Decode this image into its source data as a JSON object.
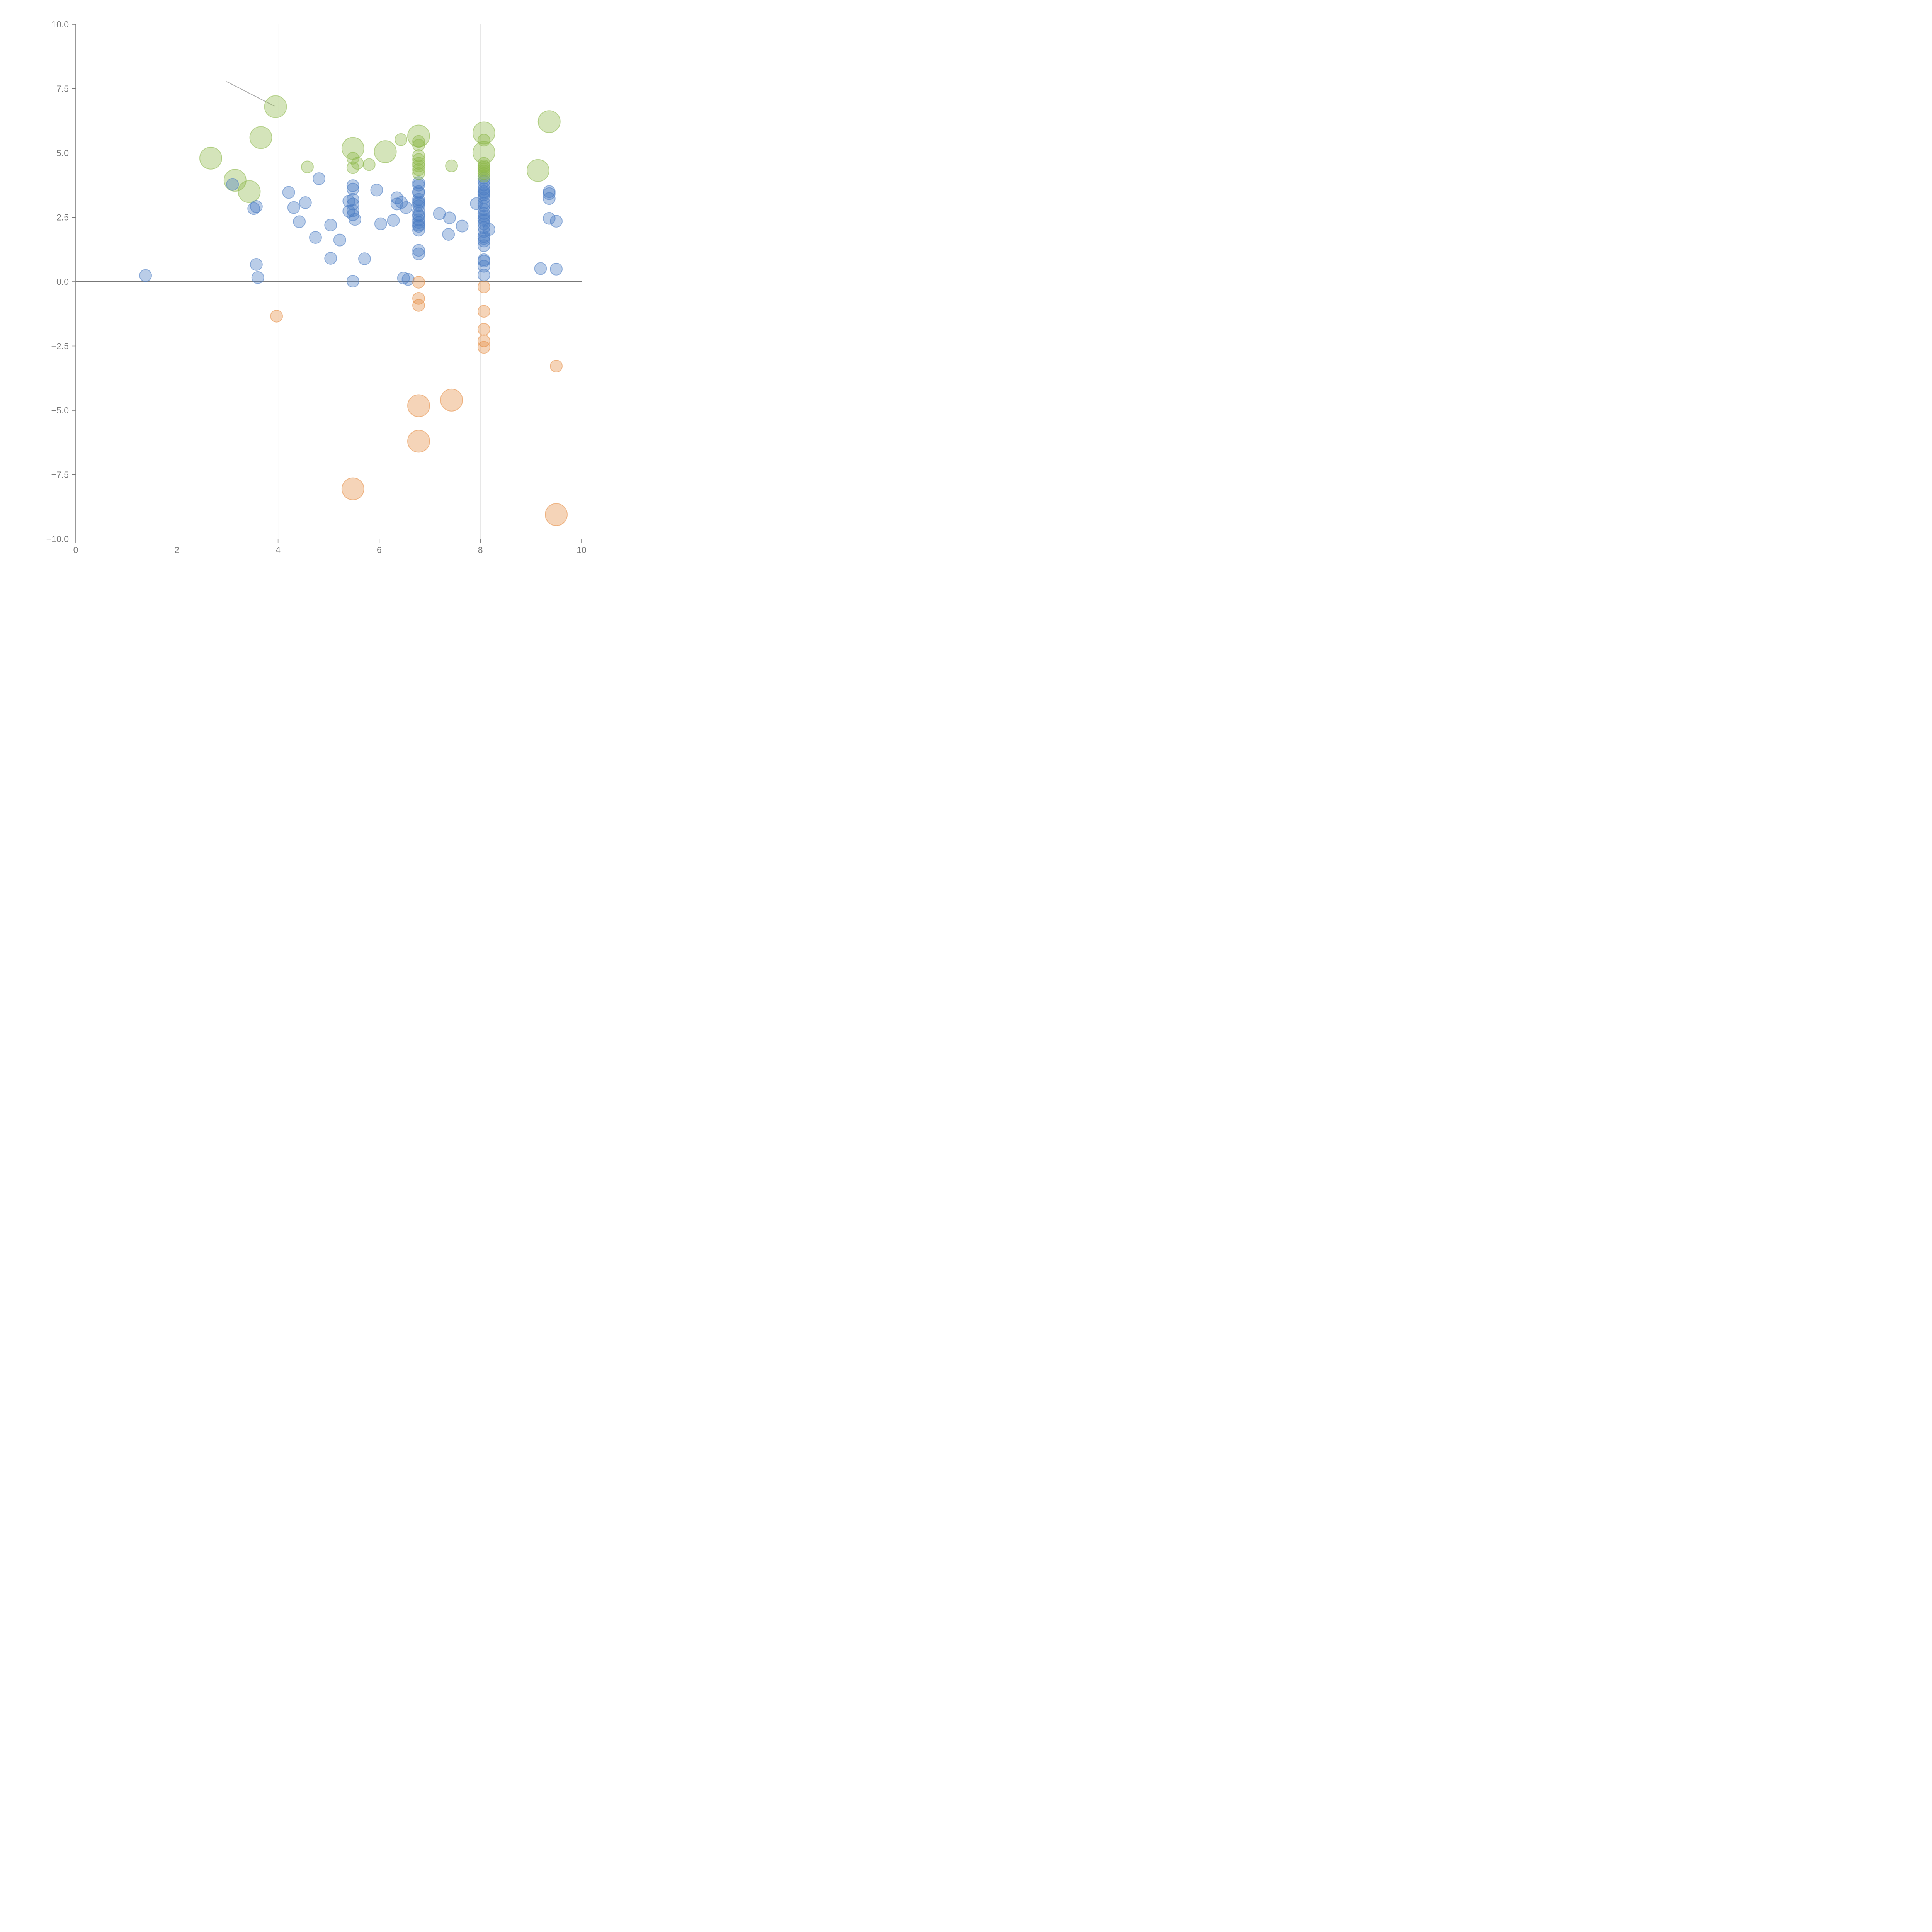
{
  "chart_data": {
    "type": "scatter",
    "title": "",
    "xlabel": "",
    "ylabel": "",
    "xlim": [
      0,
      10
    ],
    "ylim": [
      -10,
      10
    ],
    "x_ticks": [
      "0",
      "2",
      "4",
      "6",
      "8",
      "10"
    ],
    "y_ticks": [
      "10.0",
      "7.5",
      "5.0",
      "2.5",
      "0.0",
      "−2.5",
      "−5.0",
      "−7.5",
      "−10.0"
    ],
    "grid": {
      "vertical": true,
      "horizontal": false
    },
    "zero_line": true,
    "legend": "none",
    "colors": {
      "blue": "#4a7cc2",
      "green": "#8db84a",
      "orange": "#e58e45",
      "axis": "#777777",
      "grid": "#dddddd"
    },
    "series": [
      {
        "color_key": "blue",
        "points": [
          [
            1.38,
            0.24
          ],
          [
            3.1,
            3.78
          ],
          [
            3.52,
            2.84
          ],
          [
            3.57,
            2.92
          ],
          [
            3.57,
            0.67
          ],
          [
            3.6,
            0.16
          ],
          [
            4.21,
            3.47
          ],
          [
            4.31,
            2.88
          ],
          [
            4.42,
            2.33
          ],
          [
            4.54,
            3.07
          ],
          [
            4.74,
            1.72
          ],
          [
            4.81,
            4.0
          ],
          [
            5.04,
            2.2
          ],
          [
            5.04,
            0.91
          ],
          [
            5.22,
            1.62
          ],
          [
            5.4,
            3.13
          ],
          [
            5.4,
            2.74
          ],
          [
            5.48,
            3.73
          ],
          [
            5.48,
            3.6
          ],
          [
            5.48,
            3.2
          ],
          [
            5.48,
            3.02
          ],
          [
            5.48,
            2.76
          ],
          [
            5.48,
            2.6
          ],
          [
            5.48,
            0.02
          ],
          [
            5.52,
            2.42
          ],
          [
            5.71,
            0.89
          ],
          [
            5.95,
            3.56
          ],
          [
            6.03,
            2.25
          ],
          [
            6.28,
            2.38
          ],
          [
            6.35,
            3.26
          ],
          [
            6.35,
            3.02
          ],
          [
            6.44,
            3.08
          ],
          [
            6.48,
            0.14
          ],
          [
            6.53,
            2.88
          ],
          [
            6.57,
            0.09
          ],
          [
            6.78,
            3.85
          ],
          [
            6.78,
            3.75
          ],
          [
            6.78,
            3.5
          ],
          [
            6.78,
            3.45
          ],
          [
            6.78,
            3.2
          ],
          [
            6.78,
            3.1
          ],
          [
            6.78,
            3.05
          ],
          [
            6.78,
            2.95
          ],
          [
            6.78,
            2.75
          ],
          [
            6.78,
            2.6
          ],
          [
            6.78,
            2.55
          ],
          [
            6.78,
            2.4
          ],
          [
            6.78,
            2.3
          ],
          [
            6.78,
            2.2
          ],
          [
            6.78,
            2.15
          ],
          [
            6.78,
            2.0
          ],
          [
            6.78,
            1.22
          ],
          [
            6.78,
            1.08
          ],
          [
            7.19,
            2.64
          ],
          [
            7.37,
            1.84
          ],
          [
            7.39,
            2.48
          ],
          [
            7.64,
            2.16
          ],
          [
            7.92,
            3.03
          ],
          [
            8.07,
            4.02
          ],
          [
            8.07,
            3.9
          ],
          [
            8.07,
            3.75
          ],
          [
            8.07,
            3.6
          ],
          [
            8.07,
            3.5
          ],
          [
            8.07,
            3.45
          ],
          [
            8.07,
            3.38
          ],
          [
            8.07,
            3.25
          ],
          [
            8.07,
            3.05
          ],
          [
            8.07,
            2.95
          ],
          [
            8.07,
            2.8
          ],
          [
            8.07,
            2.65
          ],
          [
            8.07,
            2.55
          ],
          [
            8.07,
            2.45
          ],
          [
            8.07,
            2.38
          ],
          [
            8.07,
            2.25
          ],
          [
            8.07,
            2.1
          ],
          [
            8.07,
            1.95
          ],
          [
            8.07,
            1.75
          ],
          [
            8.07,
            1.68
          ],
          [
            8.07,
            1.58
          ],
          [
            8.07,
            1.4
          ],
          [
            8.07,
            0.85
          ],
          [
            8.07,
            0.8
          ],
          [
            8.07,
            0.6
          ],
          [
            8.07,
            0.26
          ],
          [
            8.17,
            2.03
          ],
          [
            9.19,
            0.51
          ],
          [
            9.36,
            3.5
          ],
          [
            9.36,
            3.42
          ],
          [
            9.36,
            3.23
          ],
          [
            9.36,
            2.46
          ],
          [
            9.5,
            2.35
          ],
          [
            9.5,
            0.49
          ]
        ]
      },
      {
        "color_key": "green",
        "points": [
          [
            2.67,
            4.8,
            3
          ],
          [
            3.15,
            3.94,
            3
          ],
          [
            3.43,
            3.5,
            3
          ],
          [
            3.66,
            5.6,
            3
          ],
          [
            3.95,
            6.8,
            3
          ],
          [
            4.58,
            4.46,
            1
          ],
          [
            5.48,
            5.18,
            3
          ],
          [
            5.48,
            4.8,
            1
          ],
          [
            5.48,
            4.43,
            1
          ],
          [
            5.57,
            4.6,
            1
          ],
          [
            5.8,
            4.55,
            1
          ],
          [
            6.12,
            5.05,
            3
          ],
          [
            6.43,
            5.52,
            1
          ],
          [
            6.78,
            5.66,
            3
          ],
          [
            6.78,
            5.45,
            1
          ],
          [
            6.78,
            5.3,
            1
          ],
          [
            6.78,
            4.9,
            1
          ],
          [
            6.78,
            4.75,
            1
          ],
          [
            6.78,
            4.6,
            1
          ],
          [
            6.78,
            4.5,
            1
          ],
          [
            6.78,
            4.35,
            1
          ],
          [
            6.78,
            4.2,
            1
          ],
          [
            7.43,
            4.5,
            1
          ],
          [
            8.07,
            5.78,
            3
          ],
          [
            8.07,
            5.5,
            1
          ],
          [
            8.07,
            5.02,
            3
          ],
          [
            8.07,
            4.6,
            1
          ],
          [
            8.07,
            4.5,
            1
          ],
          [
            8.07,
            4.45,
            1
          ],
          [
            8.07,
            4.38,
            1
          ],
          [
            8.07,
            4.3,
            1
          ],
          [
            8.07,
            4.2,
            1
          ],
          [
            8.07,
            4.1,
            1
          ],
          [
            9.14,
            4.32,
            3
          ],
          [
            9.36,
            6.22,
            3
          ]
        ]
      },
      {
        "color_key": "orange",
        "points": [
          [
            3.97,
            -1.34,
            1
          ],
          [
            5.48,
            -8.05,
            3
          ],
          [
            6.78,
            -0.02,
            1
          ],
          [
            6.78,
            -0.65,
            1
          ],
          [
            6.78,
            -0.92,
            1
          ],
          [
            6.78,
            -4.82,
            3
          ],
          [
            6.78,
            -6.2,
            3
          ],
          [
            7.43,
            -4.6,
            3
          ],
          [
            8.07,
            -0.2,
            1
          ],
          [
            8.07,
            -1.15,
            1
          ],
          [
            8.07,
            -1.85,
            1
          ],
          [
            8.07,
            -2.3,
            1
          ],
          [
            8.07,
            -2.55,
            1
          ],
          [
            9.5,
            -3.28,
            1
          ],
          [
            9.5,
            -9.05,
            3
          ]
        ]
      }
    ],
    "annotation_lines": [
      {
        "from": [
          2.98,
          7.78
        ],
        "to": [
          3.93,
          6.82
        ]
      }
    ]
  }
}
